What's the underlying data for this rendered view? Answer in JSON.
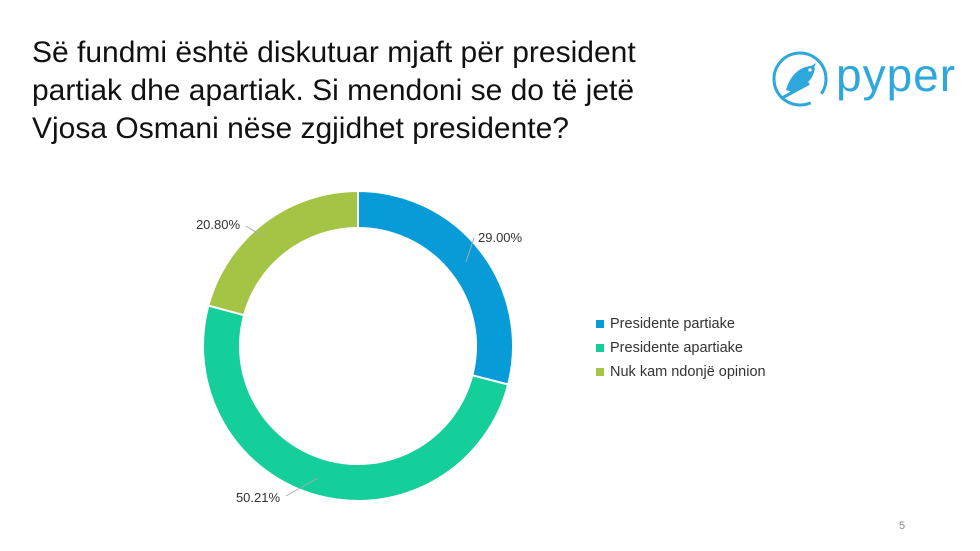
{
  "slide": {
    "title_lines": [
      "Së fundmi është diskutuar mjaft për president",
      "partiak dhe apartiak. Si mendoni se do të jetë",
      "Vjosa Osmani nëse zgjidhet presidente?"
    ],
    "page_number": "5"
  },
  "logo": {
    "text": "pyper",
    "color": "#2ea8dc"
  },
  "chart_data": {
    "type": "pie",
    "variant": "donut",
    "title": "",
    "categories": [
      "Presidente partiake",
      "Presidente apartiake",
      "Nuk kam ndonjë opinion"
    ],
    "values": [
      29.0,
      50.21,
      20.8
    ],
    "labels": [
      "29.00%",
      "50.21%",
      "20.80%"
    ],
    "colors": [
      "#079cd8",
      "#14cf9a",
      "#a3c444"
    ],
    "legend_position": "right"
  }
}
